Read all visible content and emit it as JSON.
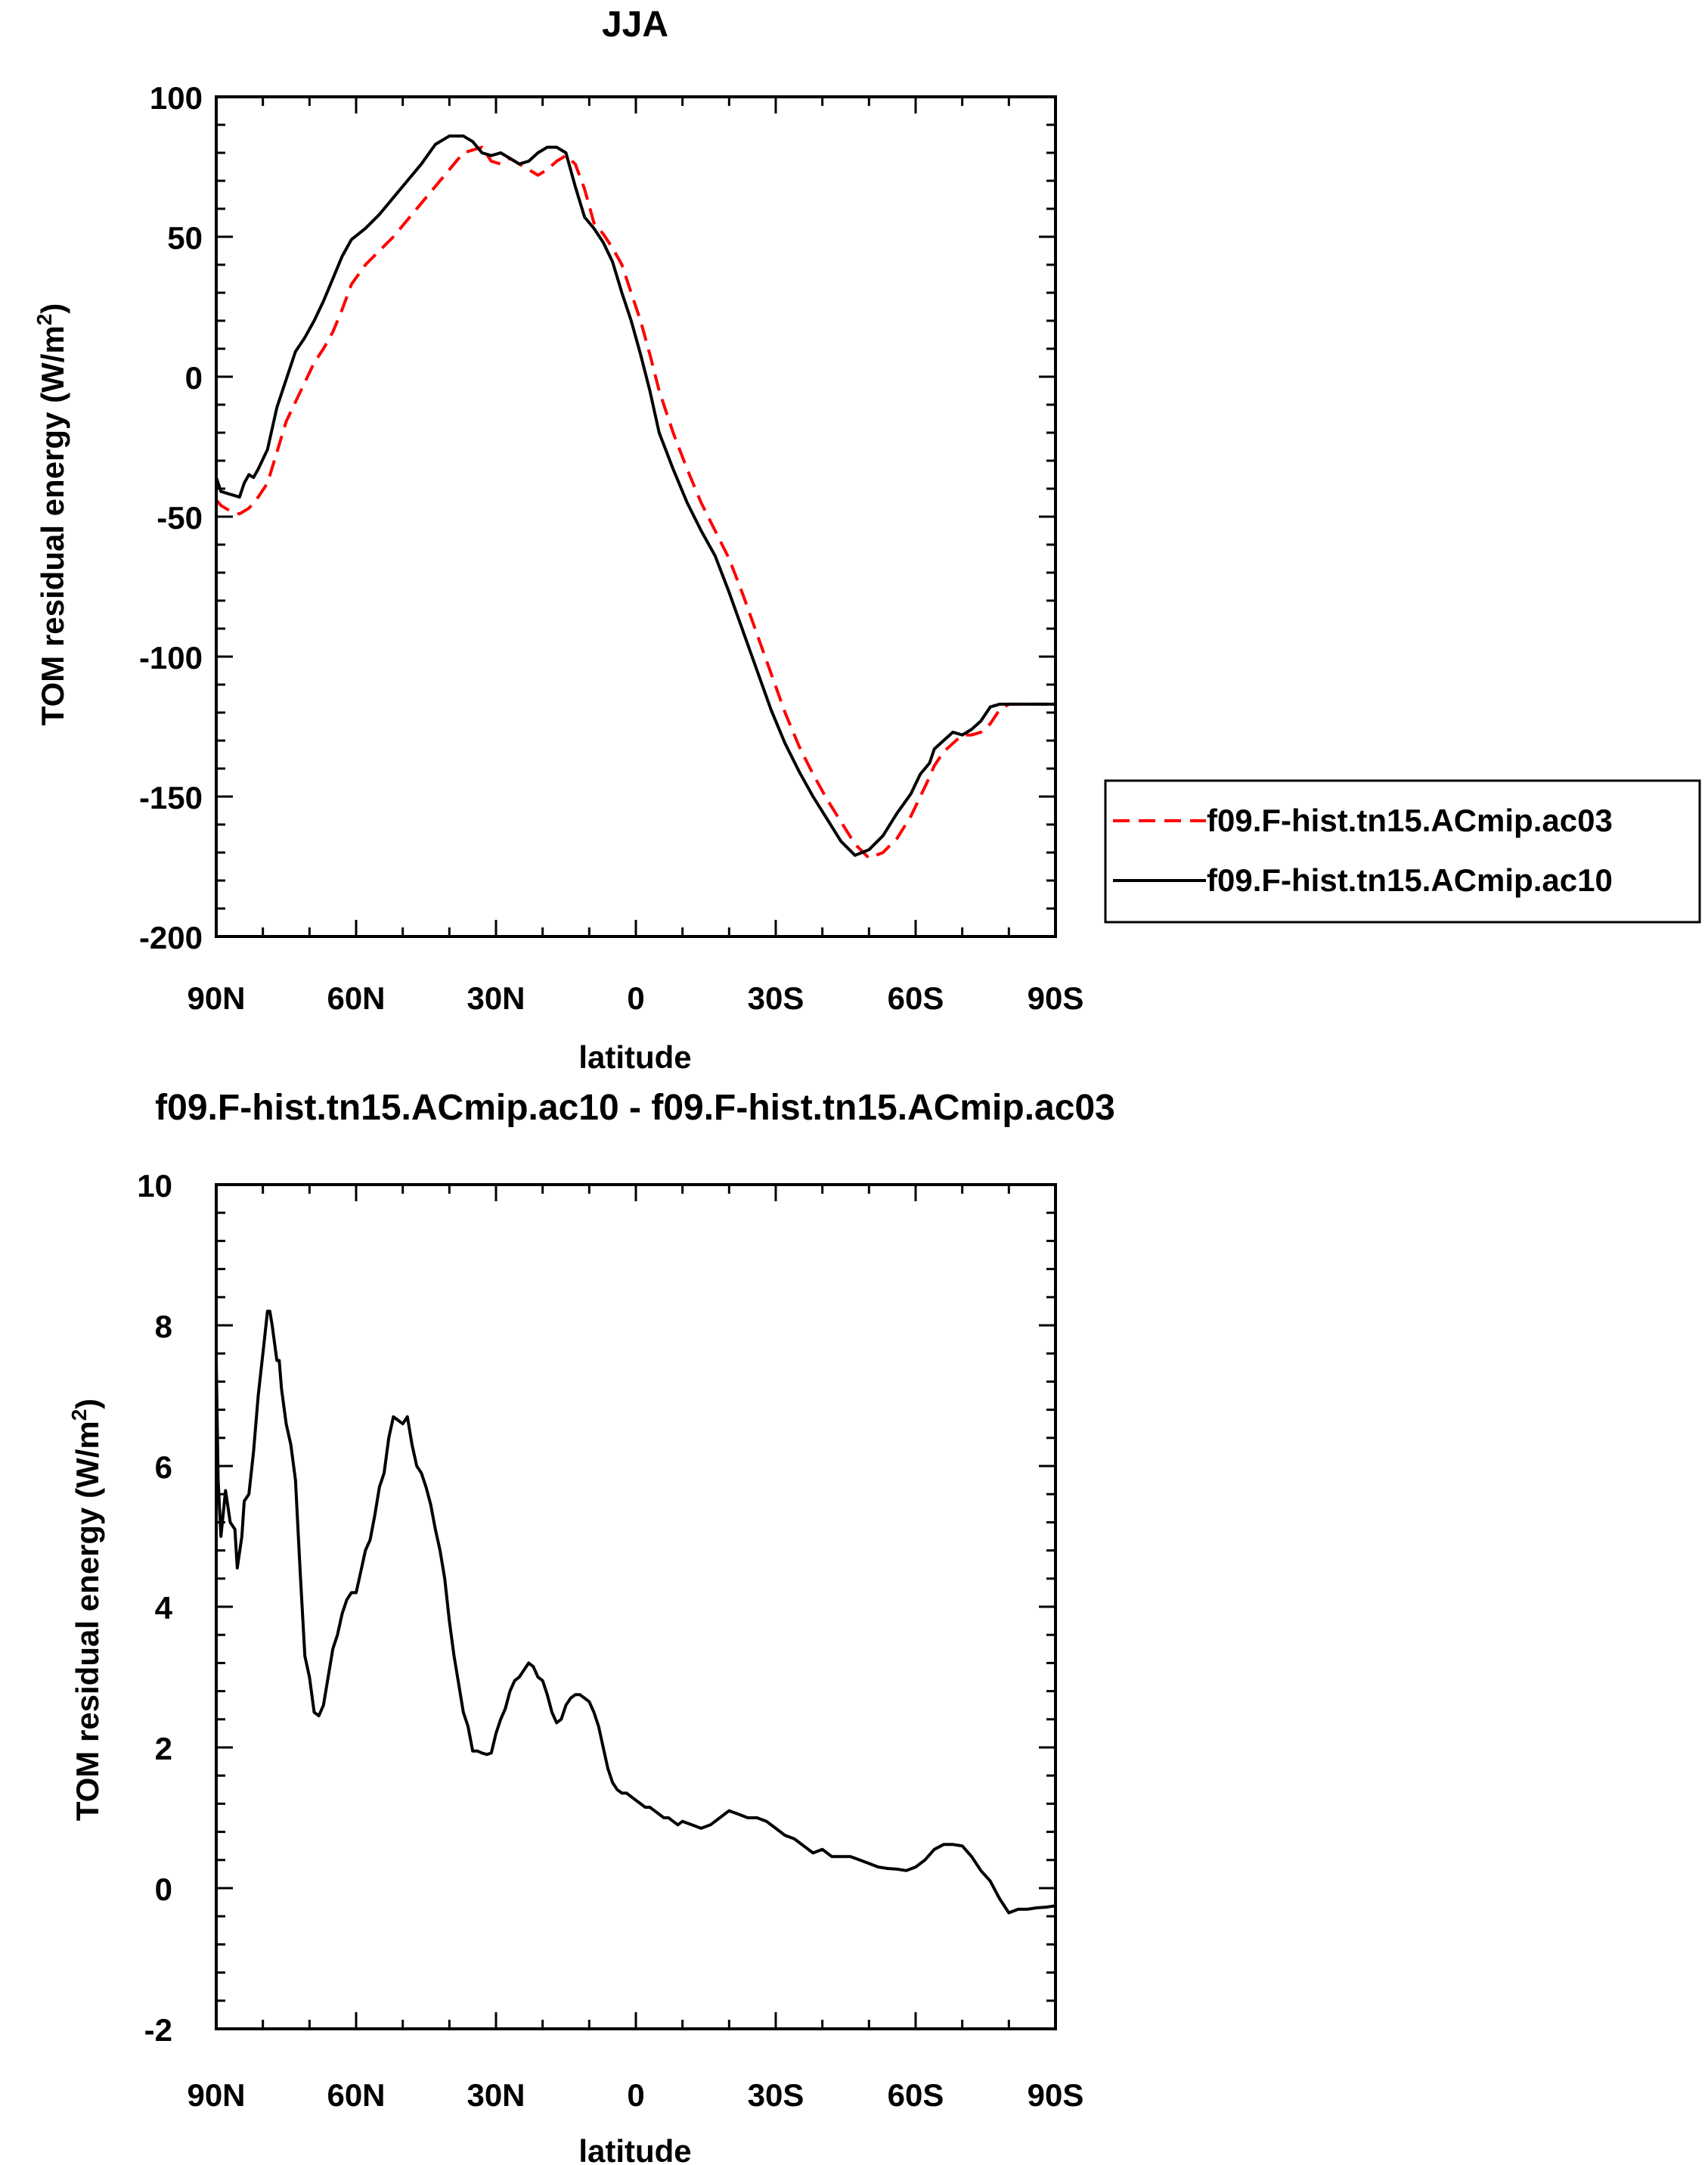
{
  "chart_data": [
    {
      "type": "line",
      "title": "JJA",
      "xlabel": "latitude",
      "ylabel": "TOM residual energy (W/m",
      "ylabel_sup": "2",
      "ylabel_close": ")",
      "xlim": [
        90,
        -90
      ],
      "ylim": [
        -200,
        100
      ],
      "x_ticks": [
        {
          "v": 90,
          "label": "90N"
        },
        {
          "v": 60,
          "label": "60N"
        },
        {
          "v": 30,
          "label": "30N"
        },
        {
          "v": 0,
          "label": "0"
        },
        {
          "v": -30,
          "label": "30S"
        },
        {
          "v": -60,
          "label": "60S"
        },
        {
          "v": -90,
          "label": "90S"
        }
      ],
      "y_ticks": [
        {
          "v": 100,
          "label": "100"
        },
        {
          "v": 50,
          "label": "50"
        },
        {
          "v": 0,
          "label": "0"
        },
        {
          "v": -50,
          "label": "-50"
        },
        {
          "v": -100,
          "label": "-100"
        },
        {
          "v": -150,
          "label": "-150"
        },
        {
          "v": -200,
          "label": "-200"
        }
      ],
      "grid": false,
      "legend": "right",
      "series": [
        {
          "name": "f09.F-hist.tn15.ACmip.ac03",
          "color": "#ff0000",
          "dash": "dashed",
          "x": [
            90,
            89,
            87,
            85,
            83,
            81,
            79,
            77,
            75,
            73,
            71,
            69,
            67,
            65,
            63,
            61,
            58,
            55,
            52,
            49,
            46,
            43,
            40,
            37,
            35,
            33,
            31,
            29,
            27,
            25,
            23,
            21,
            19,
            17,
            15,
            13,
            11,
            9,
            7,
            5,
            3,
            1,
            -1,
            -3,
            -5,
            -8,
            -11,
            -14,
            -17,
            -20,
            -23,
            -26,
            -29,
            -32,
            -35,
            -38,
            -41,
            -44,
            -47,
            -50,
            -53,
            -56,
            -59,
            -61,
            -63,
            -64,
            -66,
            -68,
            -70,
            -72,
            -74,
            -76,
            -78,
            -80,
            -82,
            -84,
            -86,
            -88,
            -90
          ],
          "y": [
            -44,
            -46,
            -48,
            -49,
            -47,
            -43,
            -38,
            -27,
            -16,
            -9,
            -2,
            5,
            10,
            16,
            24,
            33,
            40,
            45,
            50,
            56,
            62,
            68,
            74,
            80,
            81,
            82,
            77,
            76,
            78,
            76,
            74,
            72,
            74,
            77,
            79,
            76,
            67,
            55,
            51,
            46,
            40,
            30,
            20,
            8,
            -5,
            -20,
            -33,
            -45,
            -55,
            -65,
            -78,
            -92,
            -106,
            -120,
            -132,
            -142,
            -151,
            -159,
            -167,
            -172,
            -170,
            -165,
            -157,
            -150,
            -143,
            -139,
            -134,
            -131,
            -128,
            -128,
            -127,
            -124,
            -119,
            -117,
            -117,
            -117,
            -117,
            -117,
            -117
          ]
        },
        {
          "name": "f09.F-hist.tn15.ACmip.ac10",
          "color": "#000000",
          "dash": "solid",
          "x": [
            90,
            89,
            87,
            85,
            84,
            83,
            82,
            81,
            79,
            77,
            75,
            73,
            71,
            69,
            67,
            65,
            63,
            61,
            58,
            55,
            52,
            49,
            46,
            43,
            40,
            37,
            35,
            33,
            31,
            29,
            27,
            25,
            23,
            21,
            19,
            17,
            15,
            13,
            11,
            9,
            7,
            5,
            3,
            1,
            -1,
            -3,
            -5,
            -8,
            -11,
            -14,
            -17,
            -20,
            -23,
            -26,
            -29,
            -32,
            -35,
            -38,
            -41,
            -44,
            -47,
            -50,
            -53,
            -56,
            -59,
            -61,
            -63,
            -64,
            -66,
            -68,
            -70,
            -72,
            -74,
            -76,
            -78,
            -80,
            -82,
            -84,
            -86,
            -88,
            -90
          ],
          "y": [
            -36,
            -41,
            -42,
            -43,
            -38,
            -35,
            -36,
            -33,
            -26,
            -11,
            -1,
            9,
            14,
            20,
            27,
            35,
            43,
            49,
            53,
            58,
            64,
            70,
            76,
            83,
            86,
            86,
            84,
            80,
            79,
            80,
            78,
            76,
            77,
            80,
            82,
            82,
            80,
            68,
            57,
            53,
            48,
            41,
            30,
            20,
            8,
            -5,
            -20,
            -33,
            -45,
            -55,
            -64,
            -77,
            -91,
            -105,
            -119,
            -131,
            -141,
            -150,
            -158,
            -166,
            -171,
            -169,
            -164,
            -156,
            -149,
            -142,
            -138,
            -133,
            -130,
            -127,
            -128,
            -126,
            -123,
            -118,
            -117,
            -117,
            -117,
            -117,
            -117,
            -117,
            -117
          ]
        }
      ],
      "legend_entries": [
        {
          "label": "f09.F-hist.tn15.ACmip.ac03"
        },
        {
          "label": "f09.F-hist.tn15.ACmip.ac10"
        }
      ]
    },
    {
      "type": "line",
      "title": "f09.F-hist.tn15.ACmip.ac10 - f09.F-hist.tn15.ACmip.ac03",
      "xlabel": "latitude",
      "ylabel": "TOM residual energy (W/m",
      "ylabel_sup": "2",
      "ylabel_close": ")",
      "xlim": [
        90,
        -90
      ],
      "ylim": [
        -2,
        10
      ],
      "x_ticks": [
        {
          "v": 90,
          "label": "90N"
        },
        {
          "v": 60,
          "label": "60N"
        },
        {
          "v": 30,
          "label": "30N"
        },
        {
          "v": 0,
          "label": "0"
        },
        {
          "v": -30,
          "label": "30S"
        },
        {
          "v": -60,
          "label": "60S"
        },
        {
          "v": -90,
          "label": "90S"
        }
      ],
      "y_ticks": [
        {
          "v": 10,
          "label": "10"
        },
        {
          "v": 8,
          "label": "8"
        },
        {
          "v": 6,
          "label": "6"
        },
        {
          "v": 4,
          "label": "4"
        },
        {
          "v": 2,
          "label": "2"
        },
        {
          "v": 0,
          "label": "0"
        },
        {
          "v": -2,
          "label": "-2"
        }
      ],
      "grid": false,
      "series": [
        {
          "color": "#000000",
          "dash": "solid",
          "x": [
            90,
            89.6,
            89,
            88,
            87,
            86,
            85.5,
            84.5,
            84,
            83,
            82,
            81,
            80,
            79,
            78.5,
            78,
            77,
            76.5,
            76,
            75,
            74,
            73,
            72,
            71,
            70,
            69,
            68,
            67,
            66,
            65,
            64,
            63,
            62,
            61,
            60,
            59,
            58,
            57,
            56,
            55,
            54,
            53,
            52,
            51,
            50,
            49,
            48,
            47,
            46,
            45,
            44,
            43,
            42,
            41,
            40,
            39,
            38,
            37,
            36,
            35,
            34,
            33,
            32,
            31,
            30,
            29,
            28,
            27,
            26,
            25,
            24,
            23,
            22,
            21,
            20,
            19,
            18,
            17,
            16,
            15,
            14,
            13,
            12,
            11,
            10,
            9,
            8,
            7,
            6,
            5,
            4,
            3,
            2,
            1,
            0,
            -1,
            -2,
            -3,
            -4,
            -5,
            -6,
            -7,
            -8,
            -9,
            -10,
            -12,
            -14,
            -16,
            -18,
            -20,
            -22,
            -24,
            -26,
            -28,
            -30,
            -32,
            -34,
            -36,
            -38,
            -40,
            -42,
            -44,
            -46,
            -48,
            -50,
            -52,
            -54,
            -56,
            -58,
            -60,
            -62,
            -64,
            -66,
            -68,
            -70,
            -72,
            -74,
            -76,
            -78,
            -80,
            -82,
            -84,
            -86,
            -88,
            -90
          ],
          "y": [
            7.5,
            5.8,
            5.0,
            5.65,
            5.2,
            5.1,
            4.55,
            5.0,
            5.5,
            5.6,
            6.2,
            7.0,
            7.6,
            8.2,
            8.2,
            8.0,
            7.5,
            7.5,
            7.1,
            6.6,
            6.3,
            5.8,
            4.5,
            3.3,
            3.0,
            2.5,
            2.45,
            2.6,
            3.0,
            3.4,
            3.6,
            3.9,
            4.1,
            4.2,
            4.2,
            4.5,
            4.8,
            4.95,
            5.3,
            5.7,
            5.9,
            6.4,
            6.7,
            6.65,
            6.6,
            6.7,
            6.3,
            6.0,
            5.9,
            5.7,
            5.45,
            5.1,
            4.8,
            4.4,
            3.8,
            3.3,
            2.9,
            2.5,
            2.3,
            1.95,
            1.95,
            1.92,
            1.9,
            1.92,
            2.2,
            2.4,
            2.55,
            2.8,
            2.95,
            3.0,
            3.1,
            3.2,
            3.15,
            3.0,
            2.95,
            2.75,
            2.5,
            2.35,
            2.4,
            2.6,
            2.7,
            2.75,
            2.75,
            2.7,
            2.65,
            2.5,
            2.3,
            2.0,
            1.7,
            1.5,
            1.4,
            1.35,
            1.35,
            1.3,
            1.25,
            1.2,
            1.15,
            1.15,
            1.1,
            1.05,
            1.0,
            1.0,
            0.95,
            0.9,
            0.95,
            0.9,
            0.85,
            0.9,
            1.0,
            1.1,
            1.05,
            1.0,
            1.0,
            0.95,
            0.85,
            0.75,
            0.7,
            0.6,
            0.5,
            0.55,
            0.45,
            0.45,
            0.45,
            0.4,
            0.35,
            0.3,
            0.28,
            0.27,
            0.25,
            0.3,
            0.4,
            0.55,
            0.62,
            0.62,
            0.6,
            0.45,
            0.25,
            0.1,
            -0.15,
            -0.35,
            -0.3,
            -0.3,
            -0.28,
            -0.27,
            -0.25
          ]
        }
      ]
    }
  ]
}
